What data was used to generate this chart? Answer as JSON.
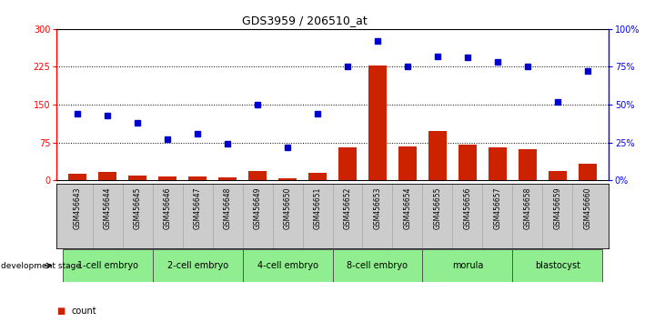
{
  "title": "GDS3959 / 206510_at",
  "samples": [
    "GSM456643",
    "GSM456644",
    "GSM456645",
    "GSM456646",
    "GSM456647",
    "GSM456648",
    "GSM456649",
    "GSM456650",
    "GSM456651",
    "GSM456652",
    "GSM456653",
    "GSM456654",
    "GSM456655",
    "GSM456656",
    "GSM456657",
    "GSM456658",
    "GSM456659",
    "GSM456660"
  ],
  "count_values": [
    13,
    17,
    10,
    8,
    7,
    5,
    18,
    4,
    14,
    65,
    228,
    68,
    98,
    70,
    65,
    62,
    18,
    32
  ],
  "percentile_values": [
    44,
    43,
    38,
    27,
    31,
    24,
    50,
    22,
    44,
    75,
    92,
    75,
    82,
    81,
    78,
    75,
    52,
    72
  ],
  "stages": [
    {
      "label": "1-cell embryo",
      "start": 0,
      "end": 3
    },
    {
      "label": "2-cell embryo",
      "start": 3,
      "end": 6
    },
    {
      "label": "4-cell embryo",
      "start": 6,
      "end": 9
    },
    {
      "label": "8-cell embryo",
      "start": 9,
      "end": 12
    },
    {
      "label": "morula",
      "start": 12,
      "end": 15
    },
    {
      "label": "blastocyst",
      "start": 15,
      "end": 18
    }
  ],
  "ylim_left": [
    0,
    300
  ],
  "ylim_right": [
    0,
    100
  ],
  "yticks_left": [
    0,
    75,
    150,
    225,
    300
  ],
  "yticks_right": [
    0,
    25,
    50,
    75,
    100
  ],
  "bar_color": "#CC2200",
  "dot_color": "#0000CC",
  "stage_color": "#90EE90",
  "stage_border_color": "#555555",
  "sample_bg_color": "#CCCCCC"
}
